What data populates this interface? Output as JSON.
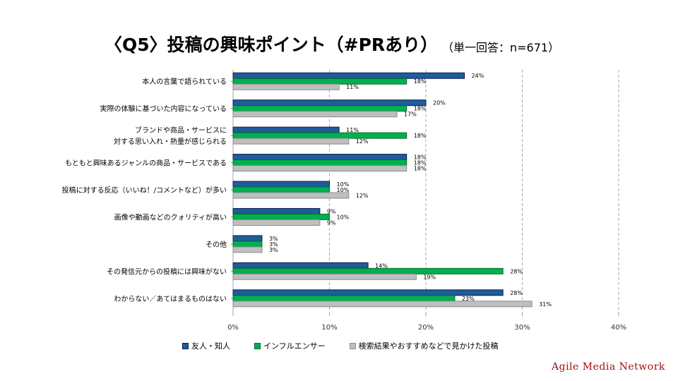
{
  "header": {
    "title": "〈Q5〉投稿の興味ポイント（#PRあり）",
    "subtitle": "（単一回答：n=671）"
  },
  "brand": "Agile Media Network",
  "chart_data": {
    "type": "bar",
    "orientation": "horizontal",
    "title": "〈Q5〉投稿の興味ポイント（#PRあり）",
    "subtitle": "（単一回答：n=671）",
    "xlabel": "",
    "ylabel": "",
    "xlim": [
      0,
      40
    ],
    "xticks": [
      0,
      10,
      20,
      30,
      40
    ],
    "xtick_labels": [
      "0%",
      "10%",
      "20%",
      "30%",
      "40%"
    ],
    "grid": "vertical dashed",
    "legend_position": "bottom",
    "categories": [
      [
        "本人の言葉で語られている"
      ],
      [
        "実際の体験に基づいた内容になっている"
      ],
      [
        "ブランドや商品・サービスに",
        "対する思い入れ・熱量が感じられる"
      ],
      [
        "もともと興味あるジャンルの商品・サービスである"
      ],
      [
        "投稿に対する反応（いいね！/コメントなど）が多い"
      ],
      [
        "画像や動画などのクォリティが高い"
      ],
      [
        "その他"
      ],
      [
        "その発信元からの投稿には興味がない"
      ],
      [
        "わからない／あてはまるものはない"
      ]
    ],
    "series": [
      {
        "name": "友人・知人",
        "color": "#1f5c99",
        "border": "#0a1f4d",
        "values": [
          24,
          20,
          11,
          18,
          10,
          9,
          3,
          14,
          28
        ]
      },
      {
        "name": "インフルエンサー",
        "color": "#00b050",
        "border": "#0b6b2a",
        "values": [
          18,
          18,
          18,
          18,
          10,
          10,
          3,
          28,
          23
        ]
      },
      {
        "name": "検索結果やおすすめなどで見かけた投稿",
        "color": "#bfbfbf",
        "border": "#8c8c8c",
        "values": [
          11,
          17,
          12,
          18,
          12,
          9,
          3,
          19,
          31
        ]
      }
    ],
    "value_suffix": "%"
  }
}
